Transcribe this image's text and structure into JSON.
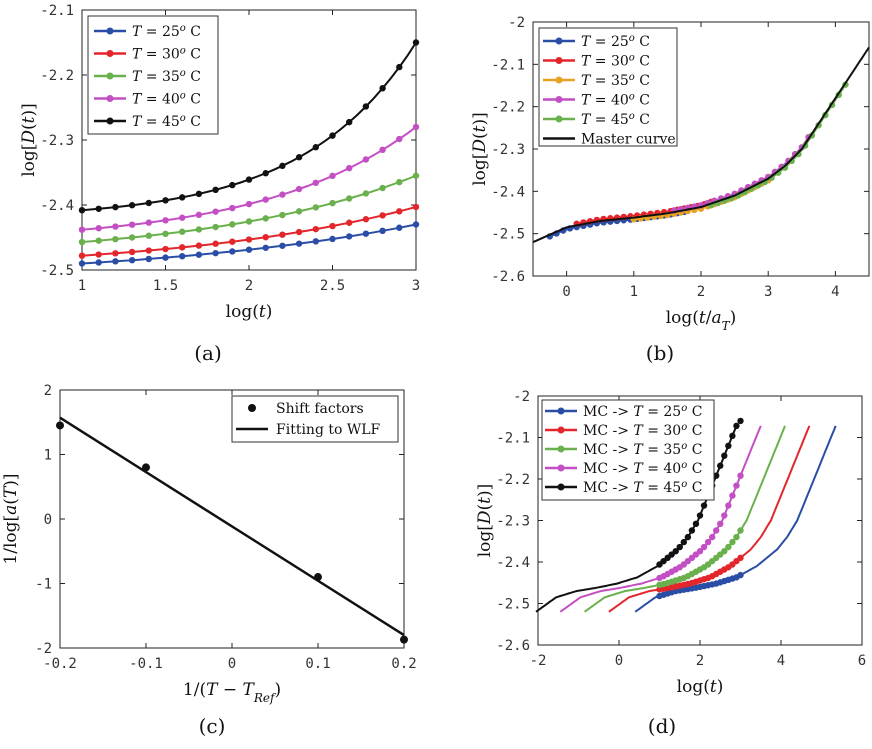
{
  "colors": {
    "T25": "#2a4ea6",
    "T30": "#e3262b",
    "T35": "#6ab04c",
    "T40": "#c44fc4",
    "T45": "#111111",
    "orange": "#e7a221",
    "master": "#111111"
  },
  "chart_data": [
    {
      "id": "a",
      "caption": "(a)",
      "type": "line",
      "xlabel": "log(t)",
      "ylabel": "log[D(t)]",
      "xlim": [
        1,
        3
      ],
      "ylim": [
        -2.5,
        -2.1
      ],
      "xticks": [
        "1",
        "1.5",
        "2",
        "2.5",
        "3"
      ],
      "yticks": [
        "-2.5",
        "-2.4",
        "-2.3",
        "-2.2",
        "-2.1"
      ],
      "legend_position": "top-left",
      "series": [
        {
          "name": "T = 25° C",
          "color": "T25",
          "y_start": -2.49,
          "y_end": -2.43,
          "curvature": 1.2
        },
        {
          "name": "T = 30° C",
          "color": "T30",
          "y_start": -2.478,
          "y_end": -2.403,
          "curvature": 1.4
        },
        {
          "name": "T = 35° C",
          "color": "T35",
          "y_start": -2.457,
          "y_end": -2.355,
          "curvature": 1.6
        },
        {
          "name": "T = 40° C",
          "color": "T40",
          "y_start": -2.438,
          "y_end": -2.28,
          "curvature": 2.2
        },
        {
          "name": "T = 45° C",
          "color": "T45",
          "y_start": -2.408,
          "y_end": -2.15,
          "curvature": 3.0
        }
      ]
    },
    {
      "id": "b",
      "caption": "(b)",
      "type": "scatter",
      "xlabel": "log(t/a_T)",
      "ylabel": "log[D(t)]",
      "xlim": [
        -0.5,
        4.5
      ],
      "ylim": [
        -2.6,
        -2.0
      ],
      "xticks": [
        "0",
        "1",
        "2",
        "3",
        "4"
      ],
      "yticks": [
        "-2.6",
        "-2.5",
        "-2.4",
        "-2.3",
        "-2.2",
        "-2.1",
        "-2"
      ],
      "legend_position": "top-left",
      "series": [
        {
          "name": "T = 25° C",
          "color": "T25",
          "x_start": -0.25,
          "x_end": 1.75
        },
        {
          "name": "T = 30° C",
          "color": "T30",
          "x_start": 0.15,
          "x_end": 2.15
        },
        {
          "name": "T = 35° C",
          "color": "orange",
          "x_start": 1.0,
          "x_end": 3.0
        },
        {
          "name": "T = 40° C",
          "color": "T40",
          "x_start": 1.6,
          "x_end": 3.6
        },
        {
          "name": "T = 45° C",
          "color": "T35",
          "x_start": 2.15,
          "x_end": 4.15
        }
      ],
      "master_curve": {
        "name": "Master curve",
        "color": "master",
        "x": [
          -0.5,
          0,
          0.5,
          1,
          1.5,
          2,
          2.5,
          3,
          3.25,
          3.5,
          3.75,
          4,
          4.25,
          4.5
        ],
        "y": [
          -2.52,
          -2.485,
          -2.47,
          -2.462,
          -2.452,
          -2.437,
          -2.41,
          -2.37,
          -2.34,
          -2.3,
          -2.24,
          -2.18,
          -2.12,
          -2.06
        ]
      }
    },
    {
      "id": "c",
      "caption": "(c)",
      "type": "scatter",
      "xlabel": "1/(T − T_Ref)",
      "ylabel": "1/log[a(T)]",
      "xlim": [
        -0.2,
        0.2
      ],
      "ylim": [
        -2,
        2
      ],
      "xticks": [
        "-0.2",
        "-0.1",
        "0",
        "0.1",
        "0.2"
      ],
      "yticks": [
        "-2",
        "-1",
        "0",
        "1",
        "2"
      ],
      "legend_position": "top-right",
      "series": [
        {
          "name": "Shift factors",
          "x": [
            -0.2,
            -0.1,
            0.1,
            0.2
          ],
          "y": [
            1.45,
            0.8,
            -0.9,
            -1.87
          ]
        }
      ],
      "fit_line": {
        "name": "Fitting to WLF",
        "x": [
          -0.2,
          0.2
        ],
        "y": [
          1.57,
          -1.8
        ]
      }
    },
    {
      "id": "d",
      "caption": "(d)",
      "type": "line",
      "xlabel": "log(t)",
      "ylabel": "log[D(t)]",
      "xlim": [
        -2,
        6
      ],
      "ylim": [
        -2.6,
        -2.0
      ],
      "xticks": [
        "-2",
        "0",
        "2",
        "4",
        "6"
      ],
      "yticks": [
        "-2.6",
        "-2.5",
        "-2.4",
        "-2.3",
        "-2.2",
        "-2.1",
        "-2"
      ],
      "legend_position": "top-left",
      "series": [
        {
          "name": "MC -> T = 25° C",
          "color": "T25",
          "shift": 1.25
        },
        {
          "name": "MC -> T = 30° C",
          "color": "T30",
          "shift": 0.6
        },
        {
          "name": "MC -> T = 35° C",
          "color": "T35",
          "shift": 0.0
        },
        {
          "name": "MC -> T = 40° C",
          "color": "T40",
          "shift": -0.6
        },
        {
          "name": "MC -> T = 45° C",
          "color": "T45",
          "shift": -1.2
        }
      ]
    }
  ]
}
